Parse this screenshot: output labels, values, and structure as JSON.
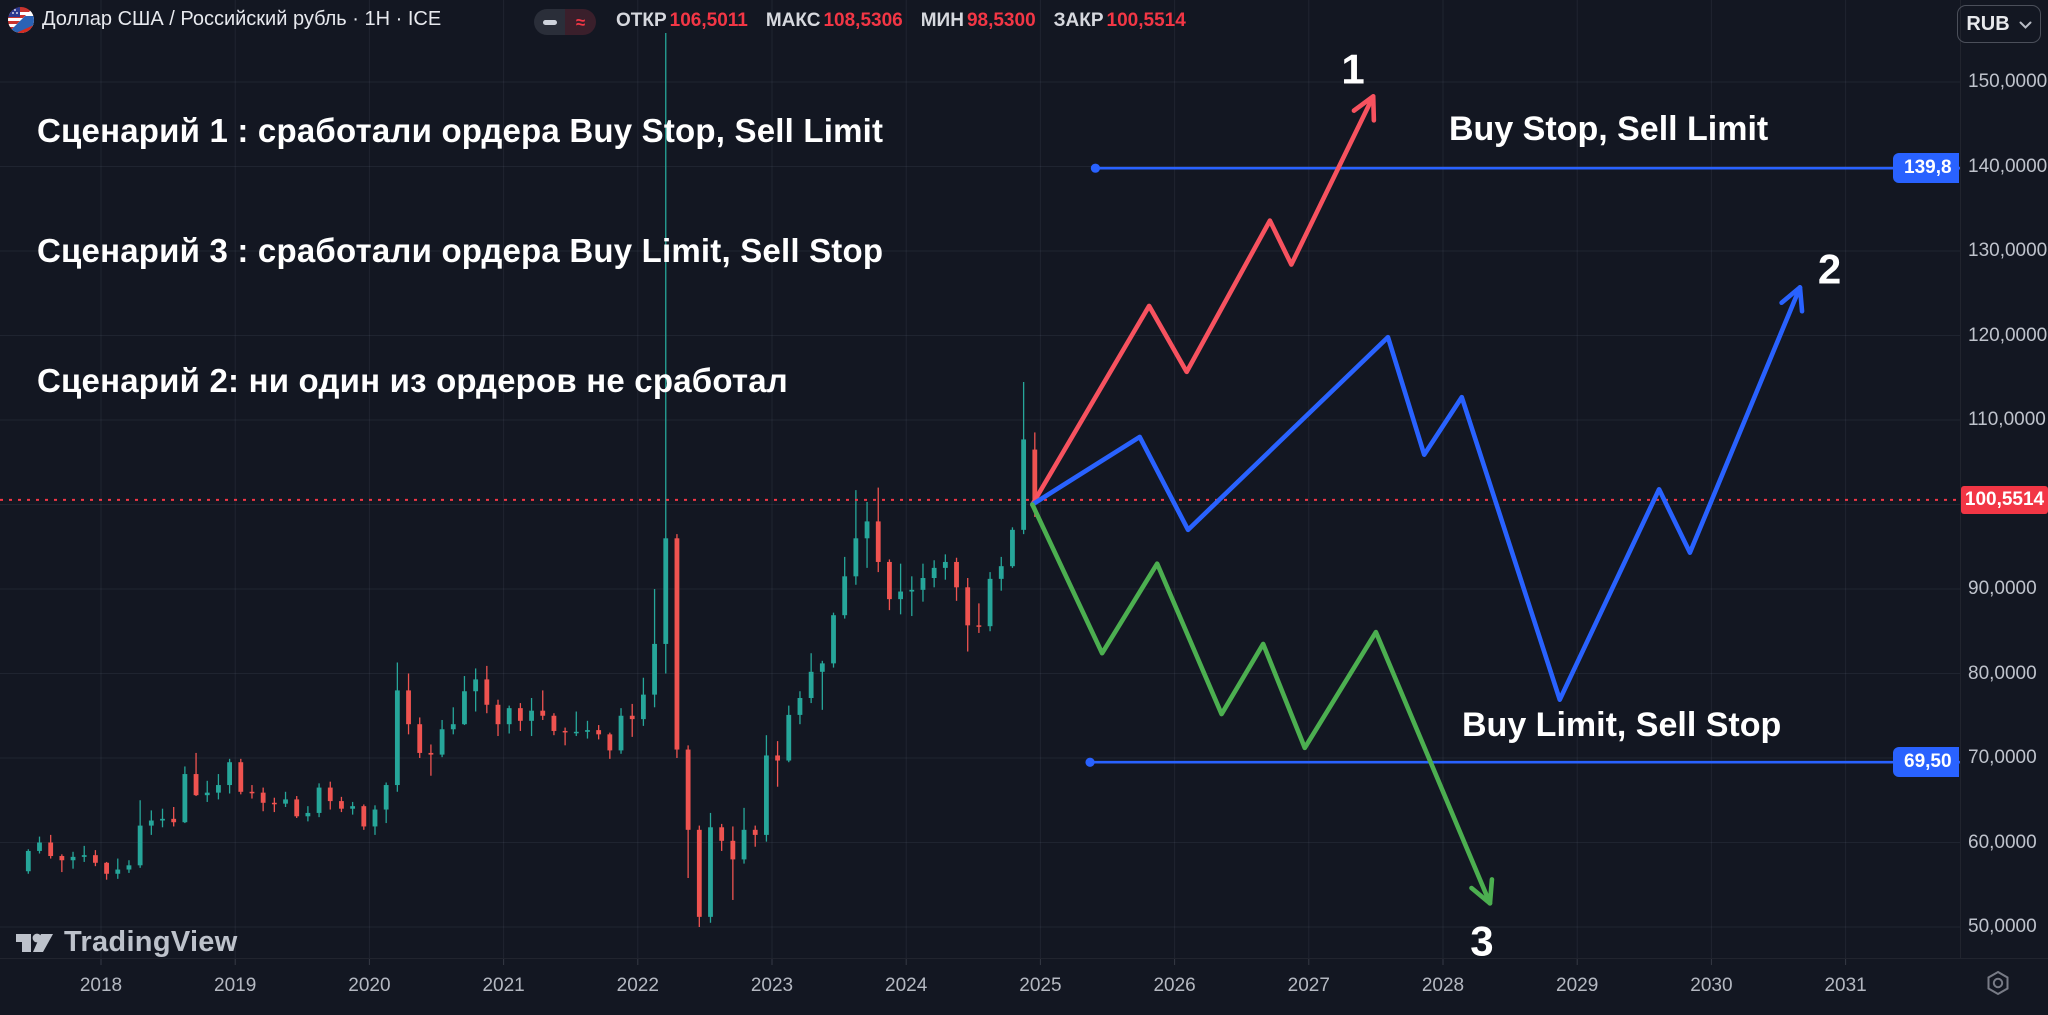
{
  "header": {
    "symbol_title": "Доллар США  /  Российский рубль · 1Н · ICE",
    "flag_icon": "usd-rub-flag",
    "series_toggle": {
      "left_icon": "minus-dash",
      "right_icon": "wave-approx"
    },
    "ohlc": [
      {
        "label": "ОТКР",
        "value": "106,5011"
      },
      {
        "label": "МАКС",
        "value": "108,5306"
      },
      {
        "label": "МИН",
        "value": "98,5300"
      },
      {
        "label": "ЗАКР",
        "value": "100,5514"
      }
    ],
    "currency_button": {
      "label": "RUB",
      "icon": "chevron-down"
    }
  },
  "annotations": {
    "scenario_1": "Сценарий 1 : сработали ордера Buy Stop, Sell Limit",
    "scenario_3": "Сценарий 3 : сработали ордера Buy Limit, Sell Stop",
    "scenario_2": "Сценарий 2: ни один из ордеров не сработал",
    "upper_ray_title": "Buy Stop, Sell Limit",
    "lower_ray_title": "Buy Limit, Sell Stop"
  },
  "price_axis": {
    "tick_labels": [
      {
        "text": "150,0000",
        "price": 150
      },
      {
        "text": "140,0000",
        "price": 140
      },
      {
        "text": "130,0000",
        "price": 130
      },
      {
        "text": "120,0000",
        "price": 120
      },
      {
        "text": "110,0000",
        "price": 110
      },
      {
        "text": "90,0000",
        "price": 90
      },
      {
        "text": "80,0000",
        "price": 80
      },
      {
        "text": "70,0000",
        "price": 70
      },
      {
        "text": "60,0000",
        "price": 60
      },
      {
        "text": "50,0000",
        "price": 50
      }
    ],
    "last_price_label": "100,5514",
    "upper_ray_price_label": "139,8",
    "lower_ray_price_label": "69,50"
  },
  "time_axis": {
    "years": [
      2018,
      2019,
      2020,
      2021,
      2022,
      2023,
      2024,
      2025,
      2026,
      2027,
      2028,
      2029,
      2030,
      2031
    ]
  },
  "watermark": {
    "brand": "TradingView"
  },
  "colors": {
    "bg": "#131722",
    "grid": "rgba(125,135,155,0.12)",
    "candle_up": "#26a69a",
    "candle_down": "#ef5350",
    "last_price_red": "#f23645",
    "ray_blue": "#2962ff",
    "scenario_red": "#f7525f",
    "scenario_blue": "#2962ff",
    "scenario_green": "#4caf50",
    "axis_text": "#bfc3cc"
  },
  "chart_data": {
    "type": "candlestick",
    "symbol": "Доллар США / Российский рубль",
    "timeframe": "1Н",
    "exchange": "ICE",
    "ohlc_readout": {
      "open": 106.5011,
      "high": 108.5306,
      "low": 98.53,
      "close": 100.5514
    },
    "last_price": 100.5514,
    "y_axis": {
      "grid_prices": [
        150,
        140,
        130,
        120,
        110,
        100,
        90,
        80,
        70,
        60,
        50
      ],
      "visible_range": [
        46,
        156
      ]
    },
    "x_axis": {
      "start_year": 2018,
      "end_year": 2031
    },
    "candles": {
      "start_month": "2017-06",
      "interval": "1M",
      "ohlc": [
        [
          56.6,
          59.2,
          56.3,
          59.0
        ],
        [
          59.0,
          60.7,
          58.7,
          60.0
        ],
        [
          60.0,
          60.9,
          58.1,
          58.4
        ],
        [
          58.4,
          58.6,
          56.5,
          57.9
        ],
        [
          57.9,
          58.9,
          56.9,
          58.3
        ],
        [
          58.3,
          59.6,
          57.7,
          58.5
        ],
        [
          58.5,
          59.1,
          57.2,
          57.6
        ],
        [
          57.6,
          57.7,
          55.6,
          56.3
        ],
        [
          56.3,
          58.1,
          55.7,
          56.8
        ],
        [
          56.8,
          57.9,
          56.4,
          57.3
        ],
        [
          57.3,
          65.0,
          57.0,
          62.0
        ],
        [
          62.0,
          63.8,
          60.9,
          62.6
        ],
        [
          62.6,
          64.0,
          61.8,
          62.8
        ],
        [
          62.8,
          64.2,
          61.9,
          62.4
        ],
        [
          62.4,
          69.0,
          62.3,
          68.1
        ],
        [
          68.1,
          70.6,
          65.5,
          65.6
        ],
        [
          65.6,
          67.3,
          64.8,
          65.9
        ],
        [
          65.9,
          68.1,
          65.1,
          66.8
        ],
        [
          66.8,
          69.9,
          65.8,
          69.5
        ],
        [
          69.5,
          69.9,
          65.7,
          66.0
        ],
        [
          66.0,
          66.8,
          65.2,
          65.9
        ],
        [
          65.9,
          66.5,
          63.7,
          64.7
        ],
        [
          64.7,
          65.3,
          63.6,
          64.6
        ],
        [
          64.6,
          66.0,
          64.2,
          65.1
        ],
        [
          65.1,
          65.5,
          62.9,
          63.1
        ],
        [
          63.1,
          64.3,
          62.5,
          63.5
        ],
        [
          63.5,
          67.0,
          63.0,
          66.5
        ],
        [
          66.5,
          67.2,
          63.9,
          64.9
        ],
        [
          64.9,
          65.4,
          63.6,
          64.0
        ],
        [
          64.0,
          64.8,
          63.3,
          64.3
        ],
        [
          64.3,
          64.5,
          61.5,
          61.9
        ],
        [
          61.9,
          64.4,
          60.9,
          63.9
        ],
        [
          63.9,
          67.1,
          62.3,
          66.8
        ],
        [
          66.8,
          81.3,
          66.0,
          78.0
        ],
        [
          78.0,
          80.0,
          72.8,
          74.0
        ],
        [
          74.0,
          74.8,
          70.0,
          70.6
        ],
        [
          70.6,
          71.6,
          67.9,
          70.4
        ],
        [
          70.4,
          74.5,
          70.1,
          73.4
        ],
        [
          73.4,
          76.0,
          72.8,
          74.0
        ],
        [
          74.0,
          79.7,
          73.9,
          77.9
        ],
        [
          77.9,
          80.6,
          75.5,
          79.3
        ],
        [
          79.3,
          80.9,
          75.3,
          76.3
        ],
        [
          76.3,
          76.9,
          72.6,
          74.0
        ],
        [
          74.0,
          76.2,
          72.9,
          75.9
        ],
        [
          75.9,
          76.5,
          73.2,
          74.4
        ],
        [
          74.4,
          77.1,
          72.6,
          75.6
        ],
        [
          75.6,
          78.0,
          74.5,
          75.0
        ],
        [
          75.0,
          75.3,
          72.7,
          73.2
        ],
        [
          73.2,
          73.6,
          71.5,
          73.1
        ],
        [
          73.1,
          75.5,
          72.6,
          73.1
        ],
        [
          73.1,
          74.4,
          72.3,
          73.3
        ],
        [
          73.3,
          73.9,
          72.2,
          72.8
        ],
        [
          72.8,
          73.0,
          69.9,
          70.9
        ],
        [
          70.9,
          75.9,
          70.5,
          75.0
        ],
        [
          75.0,
          76.4,
          72.5,
          74.6
        ],
        [
          74.6,
          79.5,
          73.8,
          77.5
        ],
        [
          77.5,
          90.0,
          76.0,
          83.5
        ],
        [
          83.5,
          155.8,
          80.0,
          96.0
        ],
        [
          96.0,
          96.5,
          70.0,
          71.0
        ],
        [
          71.0,
          71.5,
          55.8,
          61.5
        ],
        [
          61.5,
          62.0,
          50.0,
          51.2
        ],
        [
          51.2,
          63.5,
          50.5,
          61.8
        ],
        [
          61.8,
          62.2,
          59.0,
          60.2
        ],
        [
          60.2,
          61.9,
          53.2,
          58.0
        ],
        [
          58.0,
          64.1,
          57.5,
          61.5
        ],
        [
          61.5,
          62.0,
          59.5,
          60.9
        ],
        [
          60.9,
          72.7,
          60.1,
          70.3
        ],
        [
          70.3,
          72.0,
          66.6,
          69.7
        ],
        [
          69.7,
          76.2,
          69.5,
          75.1
        ],
        [
          75.1,
          77.9,
          74.0,
          77.1
        ],
        [
          77.1,
          82.4,
          76.5,
          80.2
        ],
        [
          80.2,
          81.5,
          75.7,
          81.2
        ],
        [
          81.2,
          87.2,
          80.7,
          86.9
        ],
        [
          86.9,
          93.8,
          86.5,
          91.5
        ],
        [
          91.5,
          101.7,
          90.5,
          96.0
        ],
        [
          96.0,
          100.3,
          92.5,
          98.0
        ],
        [
          98.0,
          102.0,
          92.0,
          93.2
        ],
        [
          93.2,
          93.5,
          87.5,
          88.8
        ],
        [
          88.8,
          93.0,
          87.0,
          89.7
        ],
        [
          89.7,
          91.5,
          86.8,
          89.9
        ],
        [
          89.9,
          93.0,
          88.5,
          91.3
        ],
        [
          91.3,
          93.4,
          90.2,
          92.5
        ],
        [
          92.5,
          94.1,
          91.1,
          93.2
        ],
        [
          93.2,
          93.7,
          88.6,
          90.2
        ],
        [
          90.2,
          91.3,
          82.6,
          85.7
        ],
        [
          85.7,
          88.3,
          84.8,
          85.6
        ],
        [
          85.6,
          92.0,
          85.0,
          91.2
        ],
        [
          91.2,
          93.8,
          89.8,
          92.7
        ],
        [
          92.7,
          97.3,
          92.5,
          97.0
        ],
        [
          97.0,
          114.5,
          96.5,
          107.7
        ],
        [
          106.5,
          108.53,
          98.53,
          100.55
        ]
      ]
    },
    "rays": [
      {
        "id": "buy-stop-sell-limit",
        "price": 139.8,
        "start_year": 2025.41,
        "label": "139,8",
        "color": "#2962ff"
      },
      {
        "id": "buy-limit-sell-stop",
        "price": 69.5,
        "start_year": 2025.37,
        "label": "69,50",
        "color": "#2962ff"
      }
    ],
    "scenarios": [
      {
        "id": "1",
        "color": "#f7525f",
        "points": [
          [
            2024.94,
            100.0
          ],
          [
            2025.81,
            123.5
          ],
          [
            2026.09,
            115.7
          ],
          [
            2026.71,
            133.6
          ],
          [
            2026.87,
            128.4
          ],
          [
            2027.48,
            148.3
          ]
        ],
        "marker": {
          "text": "1",
          "at": [
            2027.33,
            151.5
          ]
        }
      },
      {
        "id": "2",
        "color": "#2962ff",
        "points": [
          [
            2024.94,
            100.0
          ],
          [
            2025.74,
            108.0
          ],
          [
            2026.1,
            97.0
          ],
          [
            2027.59,
            119.8
          ],
          [
            2027.86,
            105.9
          ],
          [
            2028.14,
            112.7
          ],
          [
            2028.87,
            76.9
          ],
          [
            2029.61,
            101.8
          ],
          [
            2029.84,
            94.3
          ],
          [
            2030.66,
            125.7
          ]
        ],
        "marker": {
          "text": "2",
          "at": [
            2030.88,
            127.8
          ]
        }
      },
      {
        "id": "3",
        "color": "#4caf50",
        "points": [
          [
            2024.94,
            100.0
          ],
          [
            2025.46,
            82.4
          ],
          [
            2025.87,
            93.0
          ],
          [
            2026.35,
            75.2
          ],
          [
            2026.66,
            83.5
          ],
          [
            2026.97,
            71.2
          ],
          [
            2027.5,
            84.9
          ],
          [
            2028.35,
            52.8
          ]
        ],
        "marker": {
          "text": "3",
          "at": [
            2028.29,
            48.3
          ]
        }
      }
    ]
  }
}
